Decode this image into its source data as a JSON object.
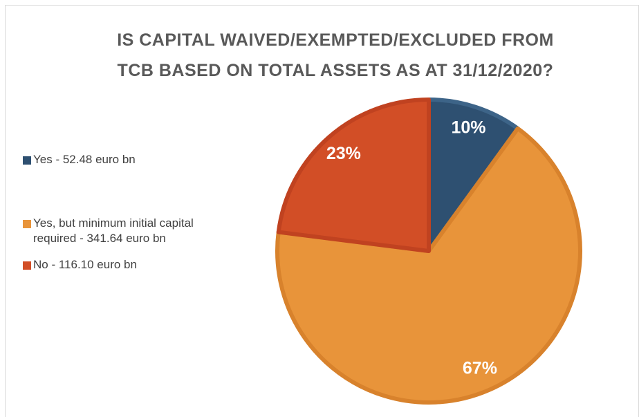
{
  "chart_data": {
    "type": "pie",
    "title": [
      "IS CAPITAL WAIVED/EXEMPTED/EXCLUDED FROM",
      "TCB BASED ON TOTAL ASSETS AS AT  31/12/2020?"
    ],
    "categories": [
      "Yes - 52.48 euro bn",
      "Yes, but minimum initial capital required - 341.64 euro bn",
      "No - 116.10  euro bn"
    ],
    "values": [
      10,
      67,
      23
    ],
    "value_labels": [
      "10%",
      "67%",
      "23%"
    ],
    "colors": [
      "#2e5071",
      "#e8943a",
      "#d24e26"
    ],
    "edge_colors": [
      "#3d6488",
      "#d8822c",
      "#c04220"
    ],
    "legend": "left"
  }
}
